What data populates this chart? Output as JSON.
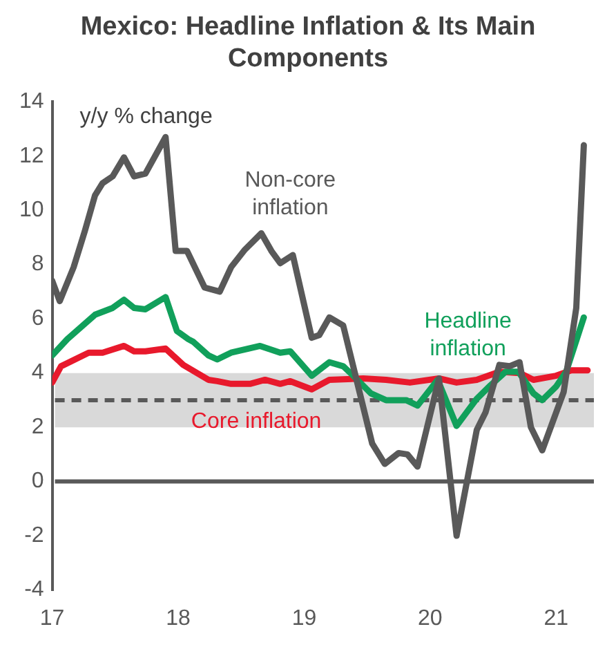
{
  "chart_data": {
    "type": "line",
    "title": "Mexico: Headline Inflation & Its Main Components",
    "ylabel": "y/y % change",
    "xlim": [
      2017,
      2021.3
    ],
    "xticks": [
      {
        "value": 2017,
        "label": "17"
      },
      {
        "value": 2018,
        "label": "18"
      },
      {
        "value": 2019,
        "label": "19"
      },
      {
        "value": 2020,
        "label": "20"
      },
      {
        "value": 2021,
        "label": "21"
      }
    ],
    "ylim": [
      -4,
      14
    ],
    "yticks": [
      -4,
      -2,
      0,
      2,
      4,
      6,
      8,
      10,
      12,
      14
    ],
    "grid": false,
    "legend": false,
    "marker": "none",
    "line_style": "solid",
    "bands": [
      {
        "axis": "y",
        "from": 2,
        "to": 4,
        "color": "#d9d9d9"
      }
    ],
    "ref_lines": [
      {
        "axis": "y",
        "value": 3,
        "color": "#595959",
        "line_style": "dashed"
      },
      {
        "axis": "y",
        "value": 0,
        "color": "#595959",
        "line_style": "solid"
      }
    ],
    "series": [
      {
        "name": "Non-core inflation",
        "color": "#595959",
        "x": [
          2017.0,
          2017.06,
          2017.17,
          2017.26,
          2017.34,
          2017.4,
          2017.48,
          2017.57,
          2017.65,
          2017.74,
          2017.9,
          2017.98,
          2018.07,
          2018.21,
          2018.33,
          2018.42,
          2018.53,
          2018.66,
          2018.74,
          2018.81,
          2018.91,
          2019.06,
          2019.12,
          2019.2,
          2019.31,
          2019.54,
          2019.64,
          2019.75,
          2019.82,
          2019.9,
          2020.07,
          2020.21,
          2020.37,
          2020.44,
          2020.55,
          2020.63,
          2020.71,
          2020.8,
          2020.89,
          2021.06,
          2021.16,
          2021.22
        ],
        "values": [
          7.4,
          6.65,
          7.9,
          9.25,
          10.55,
          11.0,
          11.25,
          11.95,
          11.25,
          11.35,
          12.7,
          8.5,
          8.5,
          7.15,
          7.0,
          7.9,
          8.55,
          9.15,
          8.5,
          8.05,
          8.35,
          5.3,
          5.4,
          6.05,
          5.75,
          1.4,
          0.65,
          1.05,
          1.0,
          0.55,
          3.8,
          -2.0,
          1.9,
          2.55,
          4.3,
          4.25,
          4.4,
          2.0,
          1.15,
          3.3,
          6.4,
          12.4
        ]
      },
      {
        "name": "Headline inflation",
        "color": "#11a05b",
        "x": [
          2017.0,
          2017.12,
          2017.34,
          2017.48,
          2017.57,
          2017.65,
          2017.74,
          2017.9,
          2017.99,
          2018.08,
          2018.12,
          2018.24,
          2018.31,
          2018.42,
          2018.65,
          2018.81,
          2018.89,
          2019.06,
          2019.2,
          2019.31,
          2019.39,
          2019.53,
          2019.65,
          2019.81,
          2019.9,
          2020.06,
          2020.21,
          2020.37,
          2020.48,
          2020.6,
          2020.7,
          2020.82,
          2020.89,
          2021.0,
          2021.08,
          2021.22
        ],
        "values": [
          4.65,
          5.25,
          6.15,
          6.4,
          6.7,
          6.4,
          6.35,
          6.8,
          5.55,
          5.25,
          5.15,
          4.65,
          4.5,
          4.75,
          5.0,
          4.75,
          4.8,
          3.9,
          4.4,
          4.25,
          3.9,
          3.25,
          3.0,
          3.0,
          2.8,
          3.75,
          2.05,
          3.05,
          3.55,
          4.05,
          4.05,
          3.25,
          3.0,
          3.5,
          4.05,
          6.05
        ]
      },
      {
        "name": "Core inflation",
        "color": "#e8192c",
        "x": [
          2017.0,
          2017.07,
          2017.29,
          2017.4,
          2017.57,
          2017.65,
          2017.74,
          2017.9,
          2018.04,
          2018.24,
          2018.31,
          2018.42,
          2018.57,
          2018.69,
          2018.81,
          2018.89,
          2019.06,
          2019.2,
          2019.47,
          2019.65,
          2019.84,
          2020.07,
          2020.21,
          2020.37,
          2020.55,
          2020.71,
          2020.82,
          2021.0,
          2021.12,
          2021.25
        ],
        "values": [
          3.65,
          4.25,
          4.75,
          4.75,
          5.0,
          4.8,
          4.8,
          4.9,
          4.3,
          3.75,
          3.7,
          3.6,
          3.6,
          3.75,
          3.6,
          3.7,
          3.4,
          3.75,
          3.8,
          3.75,
          3.65,
          3.8,
          3.65,
          3.75,
          4.05,
          4.0,
          3.75,
          3.9,
          4.1,
          4.1
        ]
      }
    ]
  }
}
